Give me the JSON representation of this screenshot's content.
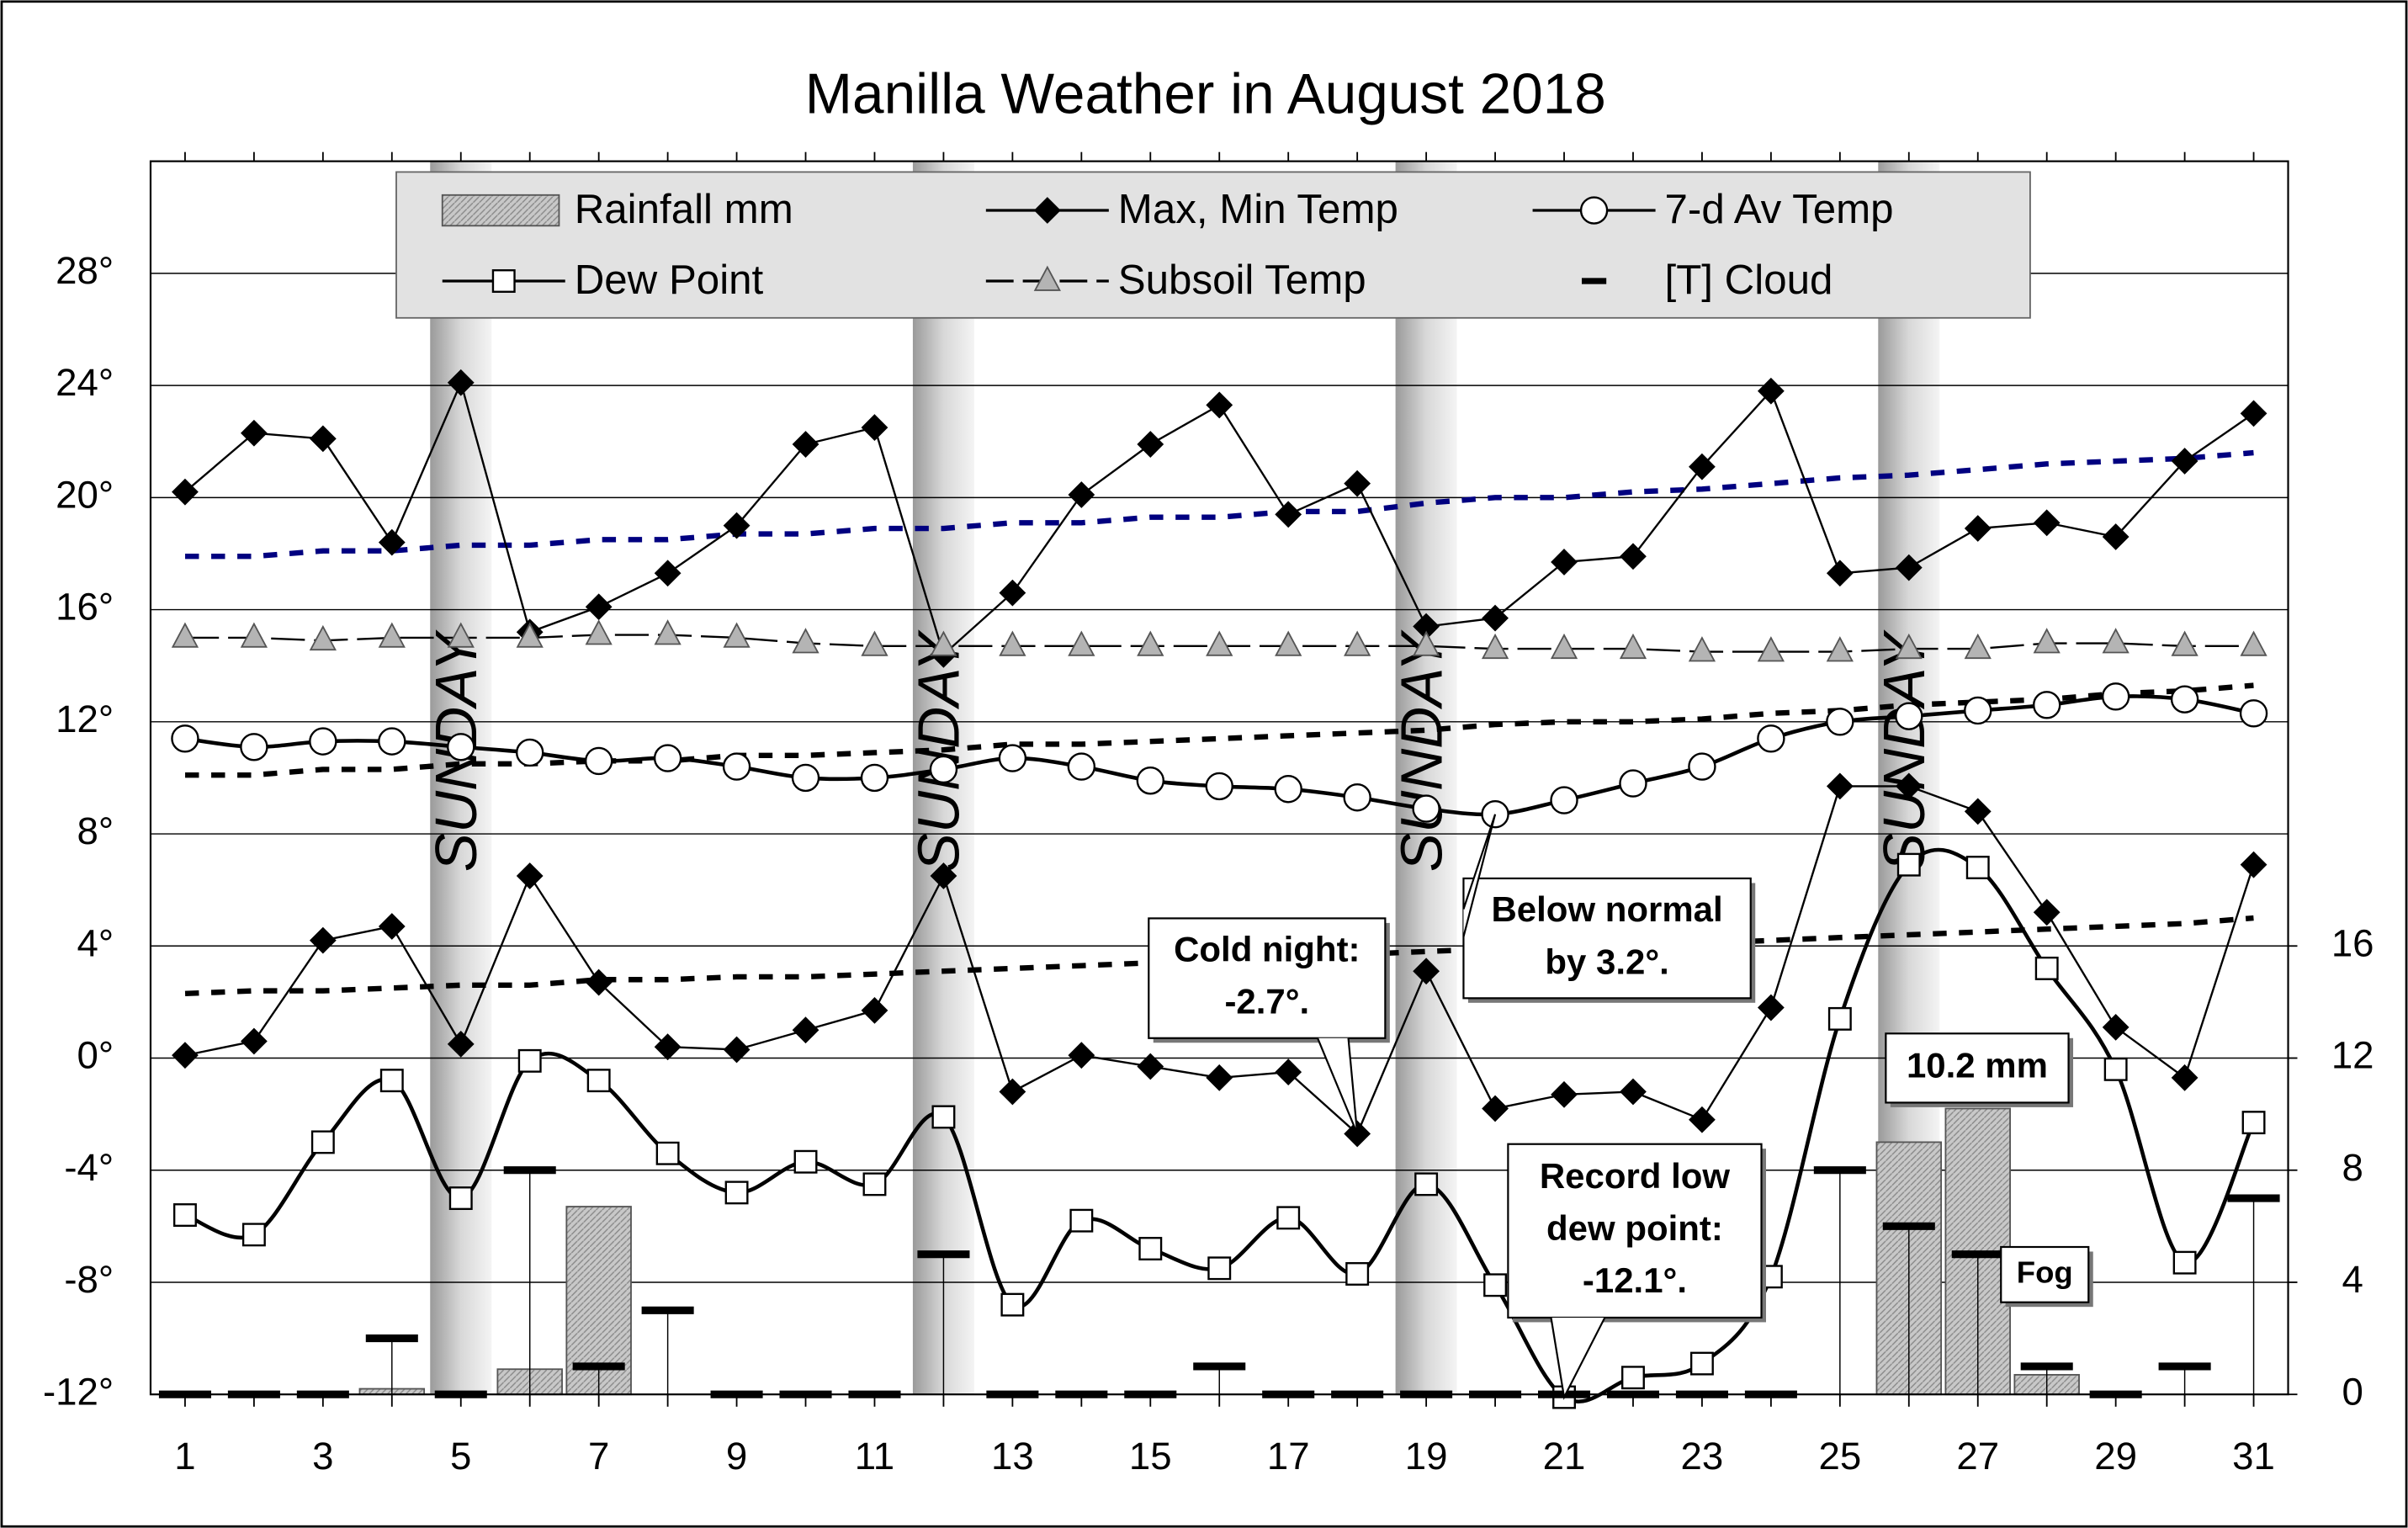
{
  "chart_data": {
    "type": "line",
    "title": "Manilla Weather in August 2018",
    "x": [
      1,
      2,
      3,
      4,
      5,
      6,
      7,
      8,
      9,
      10,
      11,
      12,
      13,
      14,
      15,
      16,
      17,
      18,
      19,
      20,
      21,
      22,
      23,
      24,
      25,
      26,
      27,
      28,
      29,
      30,
      31
    ],
    "xlim": [
      0.5,
      31.5
    ],
    "xticks": [
      1,
      3,
      5,
      7,
      9,
      11,
      13,
      15,
      17,
      19,
      21,
      23,
      25,
      27,
      29,
      31
    ],
    "ylim": [
      -12,
      32
    ],
    "yticks": [
      {
        "value": -12,
        "label": "-12°"
      },
      {
        "value": -8,
        "label": "-8°"
      },
      {
        "value": -4,
        "label": "-4°"
      },
      {
        "value": 0,
        "label": "0°"
      },
      {
        "value": 4,
        "label": "4°"
      },
      {
        "value": 8,
        "label": "8°"
      },
      {
        "value": 12,
        "label": "12°"
      },
      {
        "value": 16,
        "label": "16°"
      },
      {
        "value": 20,
        "label": "20°"
      },
      {
        "value": 24,
        "label": "24°"
      },
      {
        "value": 28,
        "label": "28°"
      }
    ],
    "y2lim": [
      0,
      44
    ],
    "y2ticks": [
      0,
      4,
      8,
      12,
      16
    ],
    "grid": true,
    "sundays": [
      5,
      12,
      19,
      26
    ],
    "sunday_label": "SUNDAY",
    "series": [
      {
        "name": "Rainfall mm",
        "kind": "bar",
        "axis": "y2",
        "color": "#c4c4c4",
        "values": [
          0,
          0,
          0,
          0.2,
          0,
          0.9,
          6.7,
          0,
          0,
          0,
          0,
          0,
          0,
          0,
          0,
          0,
          0,
          0,
          0,
          0,
          0,
          0,
          0,
          0,
          0,
          9.0,
          10.2,
          0.7,
          0,
          0,
          0
        ]
      },
      {
        "name": "Max, Min Temp",
        "kind": "line",
        "marker": "diamond",
        "color": "#000000",
        "values": [
          20.2,
          22.3,
          22.1,
          18.4,
          24.1,
          15.2,
          16.1,
          17.3,
          19.0,
          21.9,
          22.5,
          14.4,
          16.6,
          20.1,
          21.9,
          23.3,
          19.4,
          20.5,
          15.4,
          15.7,
          17.7,
          17.9,
          21.1,
          23.8,
          17.3,
          17.5,
          18.9,
          19.1,
          18.6,
          21.3,
          23.0
        ],
        "min_values": [
          0.1,
          0.6,
          4.2,
          4.7,
          0.5,
          6.5,
          2.7,
          0.4,
          0.3,
          1.0,
          1.7,
          6.5,
          -1.2,
          0.1,
          -0.3,
          -0.7,
          -0.5,
          -2.7,
          3.1,
          -1.8,
          -1.3,
          -1.2,
          -2.2,
          1.8,
          9.7,
          9.7,
          8.8,
          5.2,
          1.1,
          -0.7,
          6.9
        ]
      },
      {
        "name": "7-d Av Temp",
        "kind": "line",
        "marker": "circle",
        "smooth": true,
        "color": "#000000",
        "values": [
          11.4,
          11.1,
          11.3,
          11.3,
          11.1,
          10.9,
          10.6,
          10.7,
          10.4,
          10.0,
          10.0,
          10.3,
          10.7,
          10.4,
          9.9,
          9.7,
          9.6,
          9.3,
          8.9,
          8.7,
          9.2,
          9.8,
          10.4,
          11.4,
          12.0,
          12.2,
          12.4,
          12.6,
          12.9,
          12.8,
          12.3
        ]
      },
      {
        "name": "Dew Point",
        "kind": "line",
        "marker": "square",
        "smooth": true,
        "color": "#000000",
        "values": [
          -5.6,
          -6.3,
          -3.0,
          -0.8,
          -5.0,
          -0.1,
          -0.8,
          -3.4,
          -4.8,
          -3.7,
          -4.5,
          -2.1,
          -8.8,
          -5.8,
          -6.8,
          -7.5,
          -5.7,
          -7.7,
          -4.5,
          -8.1,
          -12.1,
          -11.4,
          -10.9,
          -7.8,
          1.4,
          6.9,
          6.8,
          3.2,
          -0.4,
          -7.3,
          -2.3
        ]
      },
      {
        "name": "Subsoil Temp",
        "kind": "line",
        "marker": "triangle",
        "dashed": true,
        "color": "#000000",
        "marker_color": "#b4b4b4",
        "values": [
          15.0,
          15.0,
          14.9,
          15.0,
          15.0,
          15.0,
          15.1,
          15.1,
          15.0,
          14.8,
          14.7,
          14.7,
          14.7,
          14.7,
          14.7,
          14.7,
          14.7,
          14.7,
          14.7,
          14.6,
          14.6,
          14.6,
          14.5,
          14.5,
          14.5,
          14.6,
          14.6,
          14.8,
          14.8,
          14.7,
          14.7
        ]
      },
      {
        "name": "[T] Cloud",
        "kind": "dash",
        "axis": "y2",
        "color": "#000000",
        "values": [
          0,
          0,
          0,
          2,
          0,
          8,
          1,
          3,
          0,
          0,
          0,
          5,
          0,
          0,
          0,
          1,
          0,
          0,
          0,
          0,
          0,
          0,
          0,
          0,
          8,
          6,
          5,
          1,
          0,
          1,
          7
        ]
      }
    ],
    "reference_lines": [
      {
        "color": "#000080",
        "values": [
          17.9,
          17.9,
          18.1,
          18.1,
          18.3,
          18.3,
          18.5,
          18.5,
          18.7,
          18.7,
          18.9,
          18.9,
          19.1,
          19.1,
          19.3,
          19.3,
          19.5,
          19.5,
          19.8,
          20.0,
          20.0,
          20.2,
          20.3,
          20.5,
          20.7,
          20.8,
          21.0,
          21.2,
          21.3,
          21.4,
          21.6
        ]
      },
      {
        "color": "#000000",
        "values": [
          10.1,
          10.1,
          10.3,
          10.3,
          10.5,
          10.5,
          10.6,
          10.6,
          10.8,
          10.8,
          10.9,
          11.0,
          11.2,
          11.2,
          11.3,
          11.4,
          11.5,
          11.6,
          11.7,
          11.9,
          12.0,
          12.0,
          12.1,
          12.3,
          12.4,
          12.6,
          12.7,
          12.8,
          13.0,
          13.1,
          13.3
        ]
      },
      {
        "color": "#000000",
        "values": [
          2.3,
          2.4,
          2.4,
          2.5,
          2.6,
          2.6,
          2.8,
          2.8,
          2.9,
          2.9,
          3.0,
          3.1,
          3.2,
          3.3,
          3.4,
          3.5,
          3.6,
          3.7,
          3.8,
          3.9,
          4.0,
          4.0,
          4.1,
          4.2,
          4.3,
          4.4,
          4.5,
          4.6,
          4.7,
          4.8,
          5.0
        ]
      }
    ],
    "annotations": [
      {
        "lines": [
          "Cold night:",
          "-2.7°."
        ]
      },
      {
        "lines": [
          "Below normal",
          "by 3.2°."
        ]
      },
      {
        "lines": [
          "Record low",
          "dew point:",
          "-12.1°."
        ]
      },
      {
        "lines": [
          "10.2 mm"
        ]
      },
      {
        "lines": [
          "Fog"
        ]
      }
    ]
  }
}
